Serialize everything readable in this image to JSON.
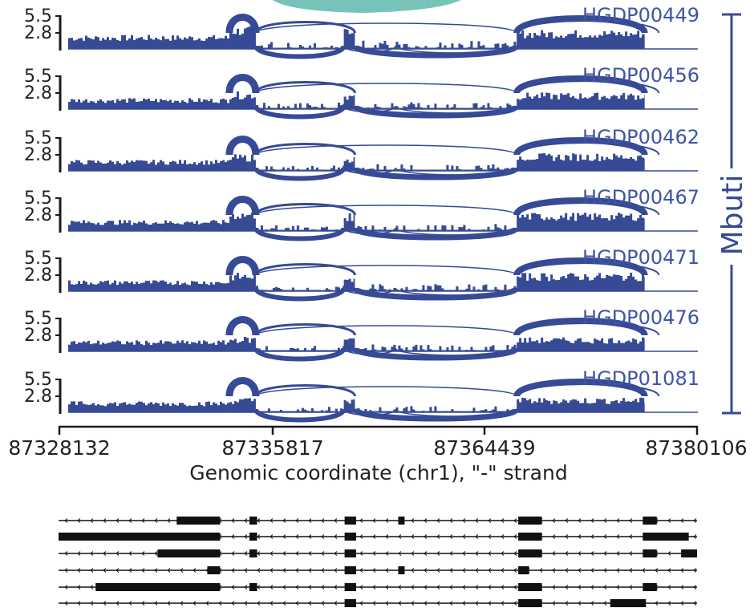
{
  "chart_data": {
    "type": "area",
    "title": "",
    "xlabel": "Genomic coordinate (chr1), \"-\" strand",
    "ylabel": "",
    "x_tick_labels": [
      "87328132",
      "87335817",
      "87364439",
      "87380106"
    ],
    "y_tick_labels": [
      "5.5",
      "2.8"
    ],
    "group_label": "Mbuti",
    "colors": {
      "coverage": "#364a95",
      "label": "#3f55a3",
      "axis": "#1a1a1a",
      "teal": "#77c3b9",
      "transcript": "#111111"
    },
    "exons": [
      {
        "start": 0.0,
        "end": 0.262,
        "level": 0.38
      },
      {
        "start": 0.262,
        "end": 0.305,
        "level": 0.62
      },
      {
        "start": 0.305,
        "end": 0.448,
        "level": 0.1
      },
      {
        "start": 0.448,
        "end": 0.466,
        "level": 0.55
      },
      {
        "start": 0.466,
        "end": 0.729,
        "level": 0.12
      },
      {
        "start": 0.729,
        "end": 0.937,
        "level": 0.52
      }
    ],
    "series": [
      {
        "name": "HGDP00449",
        "values": [
          0.38,
          0.62,
          0.1,
          0.55,
          0.12,
          0.52
        ]
      },
      {
        "name": "HGDP00456",
        "values": [
          0.3,
          0.48,
          0.1,
          0.4,
          0.1,
          0.45
        ]
      },
      {
        "name": "HGDP00462",
        "values": [
          0.3,
          0.45,
          0.08,
          0.4,
          0.1,
          0.48
        ]
      },
      {
        "name": "HGDP00467",
        "values": [
          0.3,
          0.55,
          0.08,
          0.48,
          0.1,
          0.5
        ]
      },
      {
        "name": "HGDP00471",
        "values": [
          0.3,
          0.5,
          0.08,
          0.45,
          0.1,
          0.5
        ]
      },
      {
        "name": "HGDP00476",
        "values": [
          0.3,
          0.4,
          0.08,
          0.4,
          0.1,
          0.38
        ]
      },
      {
        "name": "HGDP01081",
        "values": [
          0.3,
          0.4,
          0.08,
          0.38,
          0.1,
          0.4
        ]
      }
    ],
    "transcripts": [
      {
        "blocks": [
          [
            0.185,
            0.253
          ],
          [
            0.299,
            0.311
          ],
          [
            0.448,
            0.466
          ],
          [
            0.532,
            0.542
          ],
          [
            0.72,
            0.757
          ],
          [
            0.915,
            0.937
          ]
        ]
      },
      {
        "blocks": [
          [
            0.0,
            0.253
          ],
          [
            0.299,
            0.311
          ],
          [
            0.448,
            0.466
          ],
          [
            0.72,
            0.757
          ],
          [
            0.915,
            0.987
          ]
        ]
      },
      {
        "blocks": [
          [
            0.155,
            0.253
          ],
          [
            0.299,
            0.311
          ],
          [
            0.448,
            0.466
          ],
          [
            0.72,
            0.757
          ],
          [
            0.915,
            0.937
          ],
          [
            0.975,
            1.0
          ]
        ]
      },
      {
        "blocks": [
          [
            0.233,
            0.253
          ],
          [
            0.448,
            0.466
          ],
          [
            0.532,
            0.542
          ],
          [
            0.72,
            0.737
          ]
        ]
      },
      {
        "blocks": [
          [
            0.058,
            0.253
          ],
          [
            0.299,
            0.311
          ],
          [
            0.448,
            0.466
          ],
          [
            0.72,
            0.757
          ],
          [
            0.915,
            0.937
          ]
        ]
      },
      {
        "blocks": [
          [
            0.448,
            0.466
          ],
          [
            0.72,
            0.757
          ],
          [
            0.864,
            0.92
          ]
        ]
      }
    ]
  }
}
